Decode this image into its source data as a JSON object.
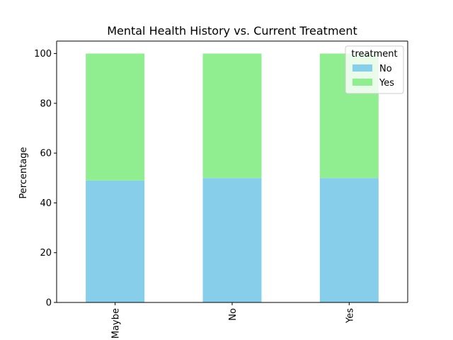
{
  "chart_data": {
    "type": "bar",
    "stacked": true,
    "title": "Mental Health History vs. Current Treatment",
    "xlabel": "",
    "ylabel": "Percentage",
    "categories": [
      "Maybe",
      "No",
      "Yes"
    ],
    "series": [
      {
        "name": "No",
        "values": [
          49,
          50,
          50
        ],
        "color": "#87ceeb"
      },
      {
        "name": "Yes",
        "values": [
          51,
          50,
          50
        ],
        "color": "#90ee90"
      }
    ],
    "ylim": [
      0,
      105
    ],
    "yticks": [
      0,
      20,
      40,
      60,
      80,
      100
    ],
    "legend": {
      "title": "treatment",
      "placement": "top-right"
    },
    "grid": false
  }
}
